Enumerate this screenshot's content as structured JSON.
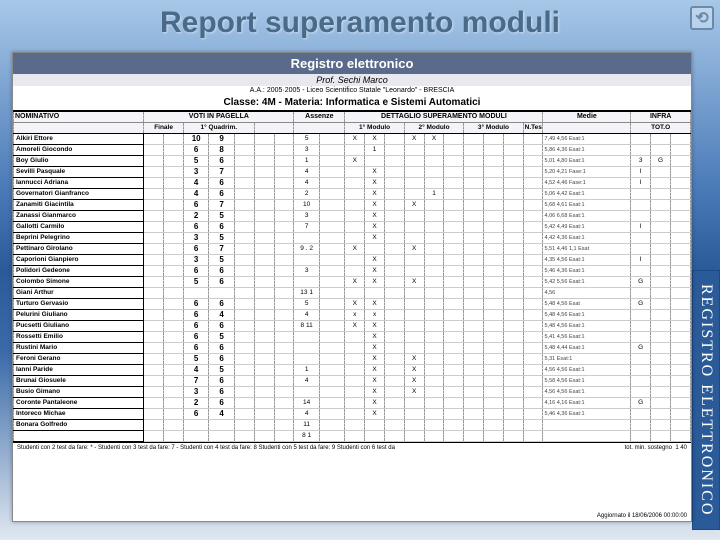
{
  "slide": {
    "title": "Report superamento moduli",
    "vertical_label": "REGISTRO ELETTRONICO"
  },
  "report": {
    "header": "Registro elettronico",
    "prof": "Prof. Sechi Marco",
    "meta": "A.A.: 2005·2005 - Liceo Scientifico Statale \"Leonardo\" - BRESCIA",
    "class_line": "Classe: 4M - Materia: Informatica e Sistemi Automatici",
    "section_heads": {
      "nominativo": "NOMINATIVO",
      "voti": "VOTI IN PAGELLA",
      "assenze": "Assenze",
      "dettaglio": "DETTAGLIO SUPERAMENTO MODULI",
      "medie": "Medie",
      "infra": "INFRA"
    },
    "col_heads": {
      "finale": "Finale",
      "q1": "1° Quadrim.",
      "m1": "1° Modulo",
      "m2": "2° Modulo",
      "m3": "3° Modulo",
      "ntest": "N.Test",
      "toto": "TOT.O"
    },
    "students": [
      {
        "name": "Alkiri Ettore",
        "v1": "10",
        "v2": "9",
        "ass": "5",
        "m1a": "X",
        "m1b": "X",
        "m2a": "X",
        "m2b": "X",
        "infra": "",
        "media": "7,49  4,56  Esat:1"
      },
      {
        "name": "Amoreli Giocondo",
        "v1": "6",
        "v2": "8",
        "ass": "3",
        "m1a": "",
        "m1b": "1",
        "m2a": "",
        "m2b": "",
        "infra": "",
        "media": "5,86  4,36  Esat:1"
      },
      {
        "name": "Boy Giulio",
        "v1": "5",
        "v2": "6",
        "ass": "1",
        "m1a": "X",
        "m1b": "",
        "m2a": "",
        "m2b": "",
        "infra": "3.G",
        "media": "5,01  4,80  Esat:1"
      },
      {
        "name": "Sevilli Pasquale",
        "v1": "3",
        "v2": "7",
        "ass": "4",
        "m1a": "",
        "m1b": "X",
        "m2a": "",
        "m2b": "",
        "infra": "I  G",
        "media": "5,20  4,21  Fase:1"
      },
      {
        "name": "Iannucci Adriana",
        "v1": "4",
        "v2": "6",
        "ass": "4",
        "m1a": "",
        "m1b": "X",
        "m2a": "",
        "m2b": "",
        "infra": "I  G",
        "media": "4,52  4,46  Fase:1"
      },
      {
        "name": "Governatori Gianfranco",
        "v1": "4",
        "v2": "6",
        "ass": "2",
        "m1a": "",
        "m1b": "X",
        "m2a": "",
        "m2b": "1",
        "infra": "",
        "media": "5,06  4,42  Esat:1"
      },
      {
        "name": "Zanamiti Giacintila",
        "v1": "6",
        "v2": "7",
        "ass": "10",
        "m1a": "",
        "m1b": "X",
        "m2a": "X",
        "m2b": "",
        "infra": "",
        "media": "5,68  4,61  Esat:1"
      },
      {
        "name": "Zanassi Gianmarco",
        "v1": "2",
        "v2": "5",
        "ass": "3",
        "m1a": "",
        "m1b": "X",
        "m2a": "",
        "m2b": "",
        "infra": "",
        "media": "4,06  6,68  Esat:1"
      },
      {
        "name": "Gallotti Carmilo",
        "v1": "6",
        "v2": "6",
        "ass": "7",
        "m1a": "",
        "m1b": "X",
        "m2a": "",
        "m2b": "",
        "infra": "I",
        "media": "5,42  4,49  Esat:1"
      },
      {
        "name": "Beprini Pelegrino",
        "v1": "3",
        "v2": "5",
        "ass": "",
        "m1a": "",
        "m1b": "X",
        "m2a": "",
        "m2b": "",
        "infra": "",
        "media": "4,42  4,36  Esat:1"
      },
      {
        "name": "Pettinaro Girolano",
        "v1": "6",
        "v2": "7",
        "ass": "9 . 2",
        "m1a": "X",
        "m1b": "",
        "m2a": "X",
        "m2b": "",
        "infra": "",
        "media": "5,51  4,46  1,1 Esat"
      },
      {
        "name": "Caporioni Gianpiero",
        "v1": "3",
        "v2": "5",
        "ass": "",
        "m1a": "",
        "m1b": "X",
        "m2a": "",
        "m2b": "",
        "infra": "I",
        "media": "4,35  4,56  Esat:1"
      },
      {
        "name": "Polidori Gedeone",
        "v1": "6",
        "v2": "6",
        "ass": "3",
        "m1a": "",
        "m1b": "X",
        "m2a": "",
        "m2b": "",
        "infra": "",
        "media": "5,46  4,36  Esat:1"
      },
      {
        "name": "Colombo Simone",
        "v1": "5",
        "v2": "6",
        "ass": "",
        "m1a": "X",
        "m1b": "X",
        "m2a": "X",
        "m2b": "",
        "infra": "G  C",
        "media": "5,42  5,56  Esat:1"
      },
      {
        "name": "Giani Arthur",
        "v1": "",
        "v2": "",
        "ass": "13  1",
        "m1a": "",
        "m1b": "",
        "m2a": "",
        "m2b": "",
        "infra": "",
        "media": "4,56"
      },
      {
        "name": "Turturo Gervasio",
        "v1": "6",
        "v2": "6",
        "ass": "5",
        "m1a": "X",
        "m1b": "X",
        "m2a": "",
        "m2b": "",
        "infra": "G",
        "media": "5,48  4,56  Esat"
      },
      {
        "name": "Pelurini Giuliano",
        "v1": "6",
        "v2": "4",
        "ass": "4",
        "m1a": "x",
        "m1b": "x",
        "m2a": "",
        "m2b": "",
        "infra": "",
        "media": "5,48  4,56  Esat:1"
      },
      {
        "name": "Pucsetti Giuliano",
        "v1": "6",
        "v2": "6",
        "ass": "8  11",
        "m1a": "X",
        "m1b": "X",
        "m2a": "",
        "m2b": "",
        "infra": "",
        "media": "5,48  4,56  Esat:1"
      },
      {
        "name": "Rossetti Emilio",
        "v1": "6",
        "v2": "5",
        "ass": "",
        "m1a": "",
        "m1b": "X",
        "m2a": "",
        "m2b": "",
        "infra": "",
        "media": "5,41  4,56  Esat:1"
      },
      {
        "name": "Rustini Mario",
        "v1": "6",
        "v2": "6",
        "ass": "",
        "m1a": "",
        "m1b": "X",
        "m2a": "",
        "m2b": "",
        "infra": "G",
        "media": "5,48  4,44  Esat:1"
      },
      {
        "name": "Feroni Gerano",
        "v1": "5",
        "v2": "6",
        "ass": "",
        "m1a": "",
        "m1b": "X",
        "m2a": "X",
        "m2b": "",
        "infra": "",
        "media": "5,31 Esat:1"
      },
      {
        "name": "Ianni Paride",
        "v1": "4",
        "v2": "5",
        "ass": "1",
        "m1a": "",
        "m1b": "X",
        "m2a": "X",
        "m2b": "",
        "infra": "",
        "media": "4,56  4,56  Esat:1"
      },
      {
        "name": "Brunai Giosuele",
        "v1": "7",
        "v2": "6",
        "ass": "4",
        "m1a": "",
        "m1b": "X",
        "m2a": "X",
        "m2b": "",
        "infra": "",
        "media": "5,58  4,56  Esat:1"
      },
      {
        "name": "Busio Gimano",
        "v1": "3",
        "v2": "6",
        "ass": "",
        "m1a": "",
        "m1b": "X",
        "m2a": "X",
        "m2b": "",
        "infra": "",
        "media": "4,56  4,56  Esat:1"
      },
      {
        "name": "Coronte Pantaleone",
        "v1": "2",
        "v2": "6",
        "ass": "14",
        "m1a": "",
        "m1b": "X",
        "m2a": "",
        "m2b": "",
        "infra": "G  G",
        "media": "4,16  4,16  Esat:1"
      },
      {
        "name": "Intoreco Michae",
        "v1": "6",
        "v2": "4",
        "ass": "4",
        "m1a": "",
        "m1b": "X",
        "m2a": "",
        "m2b": "",
        "infra": "",
        "media": "5,46  4,36  Esat:1"
      },
      {
        "name": "Bonara Golfredo",
        "v1": "",
        "v2": "",
        "ass": "11",
        "m1a": "",
        "m1b": "",
        "m2a": "",
        "m2b": "",
        "infra": "",
        "media": ""
      },
      {
        "name": "",
        "v1": "",
        "v2": "",
        "ass": "8  1",
        "m1a": "",
        "m1b": "",
        "m2a": "",
        "m2b": "",
        "infra": "",
        "media": ""
      }
    ],
    "footer_left": "Studenti con 2 test da fare: * - Studenti con 3 test da fare: 7 - Studenti con 4 test da fare: 8  Studenti con 5 test da fare: 9  Studenti con 6 test da",
    "footer_total_label": "tot. min. sostegno",
    "footer_total": "1        40",
    "footer_right": "Aggiornato il 18/06/2006 00:00:00"
  },
  "colors": {
    "header_bg": "#5a6a8a",
    "accent": "#4a6a8a"
  }
}
